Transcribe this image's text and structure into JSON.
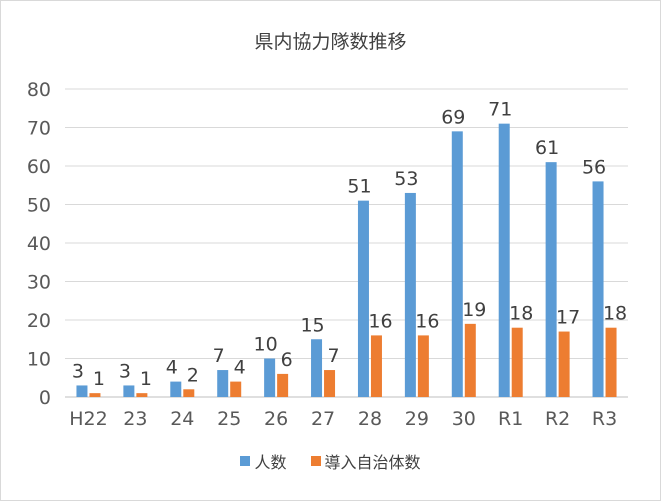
{
  "chart_data": {
    "type": "bar",
    "title": "県内協力隊数推移",
    "xlabel": "",
    "ylabel": "",
    "categories": [
      "H22",
      "23",
      "24",
      "25",
      "26",
      "27",
      "28",
      "29",
      "30",
      "R1",
      "R2",
      "R3"
    ],
    "ylim": [
      0,
      80
    ],
    "yticks": [
      "0",
      "10",
      "20",
      "30",
      "40",
      "50",
      "60",
      "70",
      "80"
    ],
    "grid": true,
    "legend_position": "bottom",
    "data_labels": true,
    "series": [
      {
        "name": "人数",
        "color": "#5b9bd5",
        "values": [
          3,
          3,
          4,
          7,
          10,
          15,
          51,
          53,
          69,
          71,
          61,
          56
        ]
      },
      {
        "name": "導入自治体数",
        "color": "#ed7d31",
        "values": [
          1,
          1,
          2,
          4,
          6,
          7,
          16,
          16,
          19,
          18,
          17,
          18
        ]
      }
    ]
  }
}
